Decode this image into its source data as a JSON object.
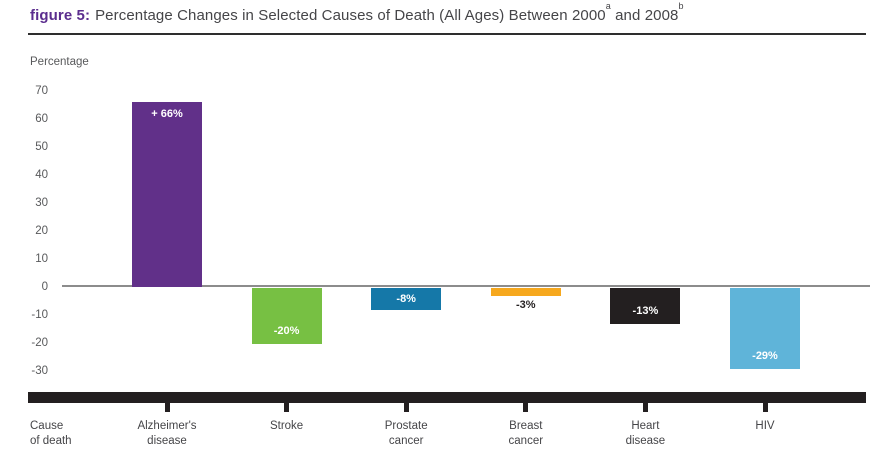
{
  "header": {
    "figure_label": "figure 5:",
    "title_main": "Percentage Changes in Selected Causes of Death (All Ages) Between 2000",
    "sup_a": "a",
    "title_mid": " and 2008",
    "sup_b": "b"
  },
  "chart": {
    "y_axis_title": "Percentage",
    "x_axis_title": "Cause\nof death"
  },
  "colors": {
    "accent_purple": "#5b2d8e",
    "zero_line_gray": "#8c8c8c",
    "axis_band_black": "#231f20",
    "text_gray": "#58595b"
  },
  "chart_data": {
    "type": "bar",
    "title": "Percentage Changes in Selected Causes of Death (All Ages) Between 2000 and 2008",
    "xlabel": "Cause of death",
    "ylabel": "Percentage",
    "ylim": [
      -30,
      70
    ],
    "y_ticks": [
      70,
      60,
      50,
      40,
      30,
      20,
      10,
      0,
      -10,
      -20,
      -30
    ],
    "grid": false,
    "legend": false,
    "categories": [
      "Alzheimer's\ndisease",
      "Stroke",
      "Prostate\ncancer",
      "Breast\ncancer",
      "Heart\ndisease",
      "HIV"
    ],
    "values": [
      66,
      -20,
      -8,
      -3,
      -13,
      -29
    ],
    "bar_labels": [
      "+ 66%",
      "-20%",
      "-8%",
      "-3%",
      "-13%",
      "-29%"
    ],
    "bar_colors": [
      "#613089",
      "#77c043",
      "#1578a8",
      "#f6a81e",
      "#231f20",
      "#5fb4d9"
    ],
    "label_colors": [
      "#ffffff",
      "#ffffff",
      "#ffffff",
      "#231f20",
      "#ffffff",
      "#ffffff"
    ],
    "label_placements": [
      "top",
      "bottom",
      "center",
      "below",
      "bottom",
      "bottom"
    ]
  }
}
